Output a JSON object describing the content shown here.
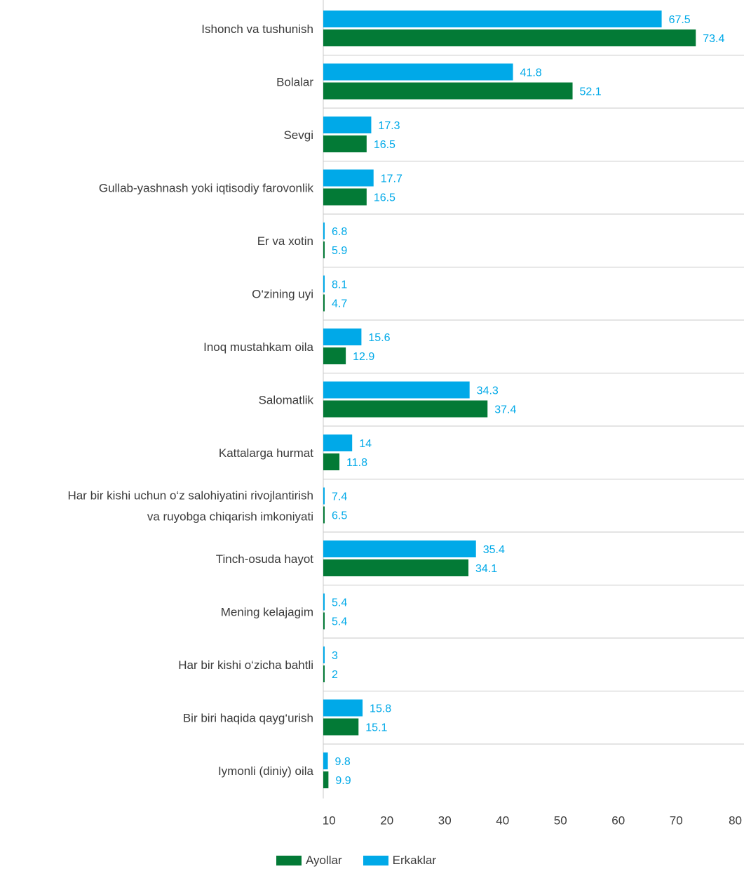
{
  "chart_data": {
    "type": "bar",
    "orientation": "horizontal",
    "categories": [
      [
        "Ishonch va tushunish"
      ],
      [
        "Bolalar"
      ],
      [
        "Sevgi"
      ],
      [
        "Gullab-yashnash yoki iqtisodiy farovonlik"
      ],
      [
        "Er va xotin"
      ],
      [
        "O‘zining uyi"
      ],
      [
        "Inoq mustahkam oila"
      ],
      [
        "Salomatlik"
      ],
      [
        "Kattalarga hurmat"
      ],
      [
        "Har bir kishi uchun o‘z salohiyatini rivojlantirish",
        "va ruyobga chiqarish imkoniyati"
      ],
      [
        "Tinch-osuda hayot"
      ],
      [
        "Mening kelajagim"
      ],
      [
        "Har bir kishi o‘zicha bahtli"
      ],
      [
        "Bir biri haqida qayg‘urish"
      ],
      [
        "Iymonli (diniy) oila"
      ]
    ],
    "series": [
      {
        "name": "Erkaklar",
        "color": "#00a9e8",
        "values": [
          67.5,
          41.8,
          17.3,
          17.7,
          6.8,
          8.1,
          15.6,
          34.3,
          14,
          7.4,
          35.4,
          5.4,
          3,
          15.8,
          9.8
        ],
        "labels": [
          "67.5",
          "41.8",
          "17.3",
          "17.7",
          "6.8",
          "8.1",
          "15.6",
          "34.3",
          "14",
          "7.4",
          "35.4",
          "5.4",
          "3",
          "15.8",
          "9.8"
        ]
      },
      {
        "name": "Ayollar",
        "color": "#037a36",
        "values": [
          73.4,
          52.1,
          16.5,
          16.5,
          5.9,
          4.7,
          12.9,
          37.4,
          11.8,
          6.5,
          34.1,
          5.4,
          2,
          15.1,
          9.9
        ],
        "labels": [
          "73.4",
          "52.1",
          "16.5",
          "16.5",
          "5.9",
          "4.7",
          "12.9",
          "37.4",
          "11.8",
          "6.5",
          "34.1",
          "5.4",
          "2",
          "15.1",
          "9.9"
        ]
      }
    ],
    "xaxis": {
      "ticks": [
        "10",
        "20",
        "30",
        "40",
        "50",
        "60",
        "70",
        "80"
      ]
    },
    "legend": {
      "position": "bottom",
      "items": [
        {
          "label": "Ayollar",
          "color": "#037a36"
        },
        {
          "label": "Erkaklar",
          "color": "#00a9e8"
        }
      ]
    }
  }
}
